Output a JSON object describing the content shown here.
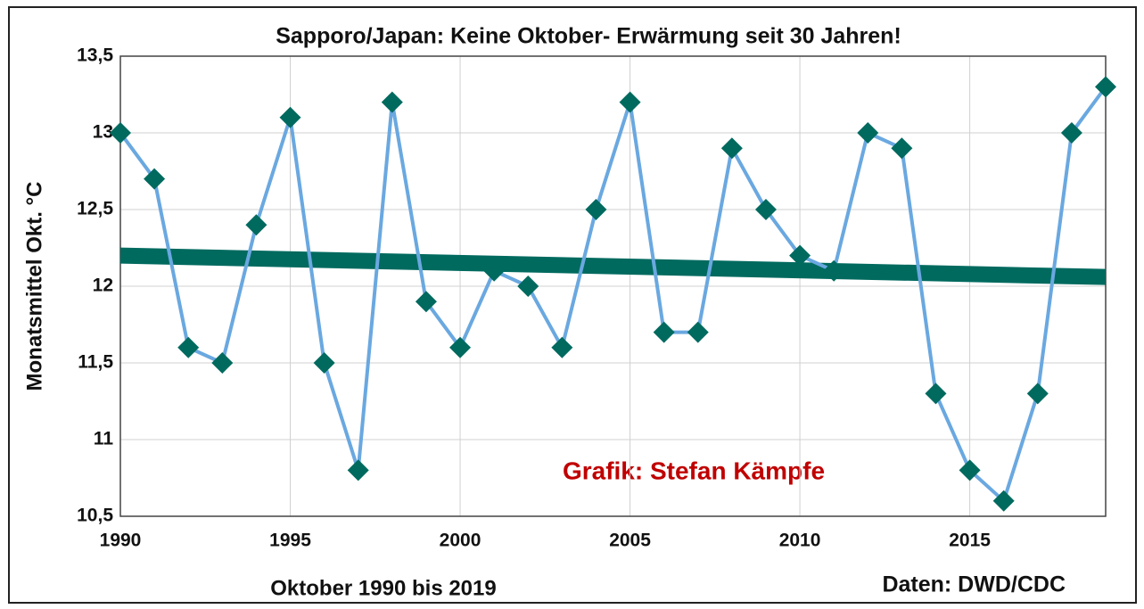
{
  "chart_data": {
    "type": "line",
    "title": "Sapporo/Japan:  Keine Oktober- Erwärmung seit 30 Jahren!",
    "y_label": "Monatsmittel Okt. °C",
    "x_label": "Oktober 1990 bis 2019",
    "annotation": "Grafik: Stefan Kämpfe",
    "source": "Daten: DWD/CDC",
    "x": [
      1990,
      1991,
      1992,
      1993,
      1994,
      1995,
      1996,
      1997,
      1998,
      1999,
      2000,
      2001,
      2002,
      2003,
      2004,
      2005,
      2006,
      2007,
      2008,
      2009,
      2010,
      2011,
      2012,
      2013,
      2014,
      2015,
      2016,
      2017,
      2018,
      2019
    ],
    "series": [
      {
        "color": "#6aa8e0",
        "marker_color": "#006a5f",
        "values": [
          13.0,
          12.7,
          11.6,
          11.5,
          12.4,
          13.1,
          11.5,
          10.8,
          13.2,
          11.9,
          11.6,
          12.1,
          12.0,
          11.6,
          12.5,
          13.2,
          11.7,
          11.7,
          12.9,
          12.5,
          12.2,
          12.1,
          13.0,
          12.9,
          11.3,
          10.8,
          10.6,
          11.3,
          13.0,
          13.3
        ]
      }
    ],
    "trendline": {
      "x": [
        1990,
        2019
      ],
      "values": [
        12.2,
        12.06
      ],
      "color": "#006a5f"
    },
    "xlim": [
      1990,
      2019
    ],
    "xticks": [
      1990,
      1995,
      2000,
      2005,
      2010,
      2015
    ],
    "ylim": [
      10.5,
      13.5
    ],
    "yticks": [
      {
        "value": 10.5,
        "label": "10,5"
      },
      11,
      {
        "value": 11.5,
        "label": "11,5"
      },
      12,
      {
        "value": 12.5,
        "label": "12,5"
      },
      13,
      {
        "value": 13.5,
        "label": "13,5"
      }
    ],
    "grid": true
  }
}
